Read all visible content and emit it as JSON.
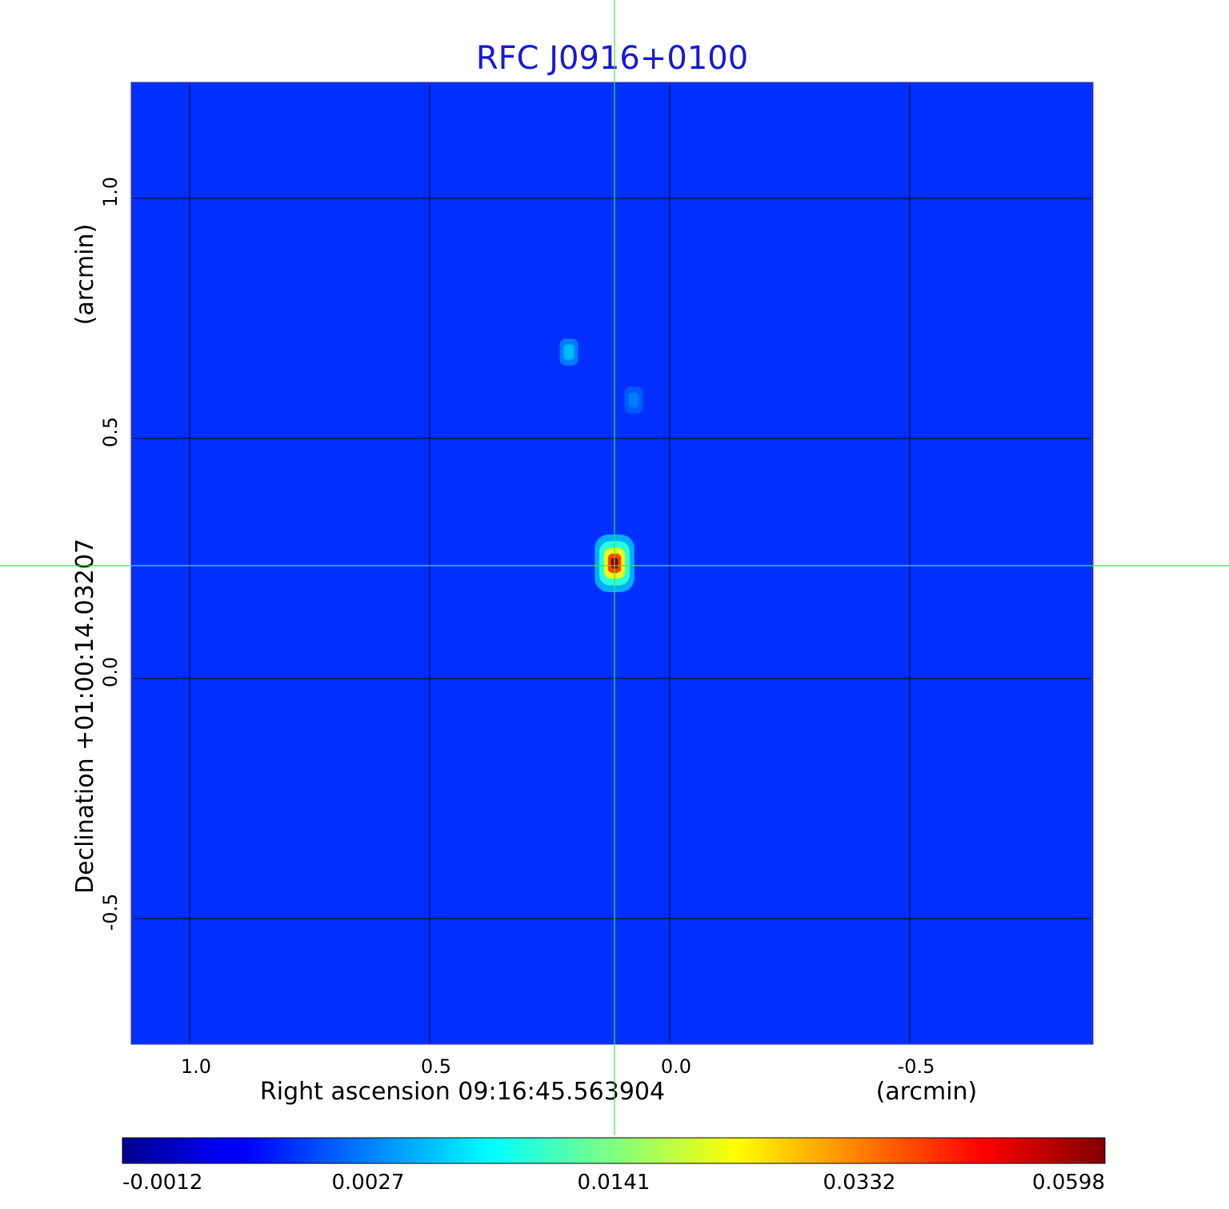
{
  "chart_data": {
    "type": "heatmap",
    "title": "RFC J0916+0100",
    "xlabel": "Right ascension  09:16:45.563904",
    "xunit": "(arcmin)",
    "ylabel": "Declination  +01:00:14.03207",
    "yunit": "(arcmin)",
    "xlim": [
      1.12,
      -0.88
    ],
    "ylim": [
      -0.76,
      1.24
    ],
    "x_ticks": [
      {
        "value": 1.0,
        "label": "1.0"
      },
      {
        "value": 0.5,
        "label": "0.5"
      },
      {
        "value": 0.0,
        "label": "0.0"
      },
      {
        "value": -0.5,
        "label": "-0.5"
      }
    ],
    "y_ticks": [
      {
        "value": 1.0,
        "label": "1.0"
      },
      {
        "value": 0.5,
        "label": "0.5"
      },
      {
        "value": 0.0,
        "label": "0.0"
      },
      {
        "value": -0.5,
        "label": "-0.5"
      }
    ],
    "grid": true,
    "colormap": "jet",
    "colorbar": {
      "position": "bottom",
      "ticks": [
        "-0.0012",
        "0.0027",
        "0.0141",
        "0.0332",
        "0.0598"
      ],
      "min": -0.0012,
      "max": 0.0598
    },
    "background_level": 0.0006,
    "sources": [
      {
        "x": 0.115,
        "y": 0.24,
        "peak": 0.0598
      },
      {
        "x": 0.21,
        "y": 0.68,
        "peak": 0.0045
      },
      {
        "x": 0.075,
        "y": 0.58,
        "peak": 0.0025
      }
    ],
    "crosshair": {
      "x": 0.115,
      "y": 0.235,
      "color": "#33ee44"
    }
  }
}
